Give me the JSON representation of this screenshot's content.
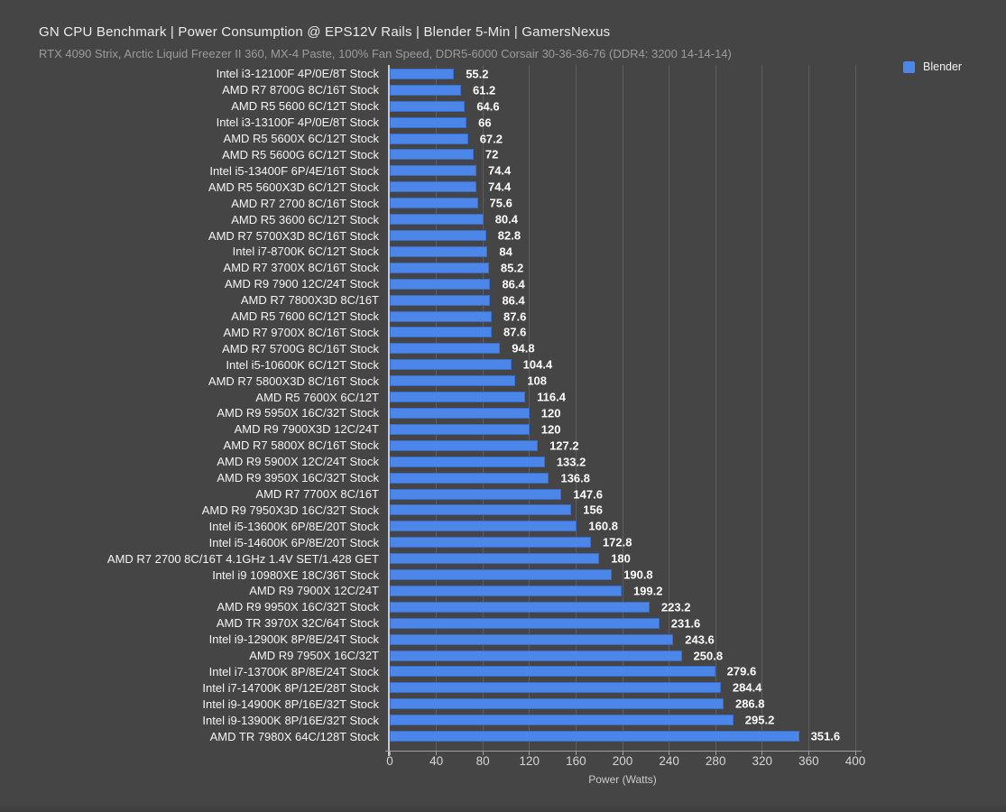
{
  "header": {
    "title": "GN CPU Benchmark | Power Consumption @ EPS12V Rails | Blender 5-Min | GamersNexus",
    "subtitle": "RTX 4090 Strix, Arctic Liquid Freezer II 360, MX-4 Paste, 100% Fan Speed, DDR5-6000 Corsair 30-36-36-76 (DDR4: 3200 14-14-14)"
  },
  "legend": {
    "label": "Blender",
    "color": "#4b86e8",
    "position": "top-right"
  },
  "colors": {
    "background": "#454545",
    "bar": "#4b86e8",
    "bar_border": "#3a6dc9",
    "gridline": "#5e5e5e",
    "zero_axis": "#c7c7c7",
    "title_text": "#ebebeb",
    "subtitle_text": "#9c9c9c",
    "label_text": "#f5f5f5",
    "value_text": "#ffffff"
  },
  "chart_data": {
    "type": "bar",
    "orientation": "horizontal",
    "title": "GN CPU Benchmark | Power Consumption @ EPS12V Rails | Blender 5-Min | GamersNexus",
    "subtitle": "RTX 4090 Strix, Arctic Liquid Freezer II 360, MX-4 Paste, 100% Fan Speed, DDR5-6000 Corsair 30-36-36-76 (DDR4: 3200 14-14-14)",
    "xlabel": "Power (Watts)",
    "ylabel": "",
    "xlim": [
      0,
      400
    ],
    "xticks": [
      0,
      40,
      80,
      120,
      160,
      200,
      240,
      280,
      320,
      360,
      400
    ],
    "grid": true,
    "legend_entries": [
      "Blender"
    ],
    "legend_position": "top-right",
    "series_name": "Blender",
    "categories": [
      "Intel i3-12100F 4P/0E/8T Stock",
      "AMD R7 8700G 8C/16T Stock",
      "AMD R5 5600 6C/12T Stock",
      "Intel i3-13100F 4P/0E/8T Stock",
      "AMD R5 5600X 6C/12T Stock",
      "AMD R5 5600G 6C/12T Stock",
      "Intel i5-13400F 6P/4E/16T Stock",
      "AMD R5 5600X3D 6C/12T Stock",
      "AMD R7 2700 8C/16T Stock",
      "AMD R5 3600 6C/12T Stock",
      "AMD R7 5700X3D 8C/16T Stock",
      "Intel i7-8700K 6C/12T Stock",
      "AMD R7 3700X 8C/16T Stock",
      "AMD R9 7900 12C/24T Stock",
      "AMD R7 7800X3D 8C/16T",
      "AMD R5 7600 6C/12T Stock",
      "AMD R7 9700X 8C/16T Stock",
      "AMD R7 5700G 8C/16T Stock",
      "Intel i5-10600K 6C/12T Stock",
      "AMD R7 5800X3D 8C/16T Stock",
      "AMD R5 7600X 6C/12T",
      "AMD R9 5950X 16C/32T Stock",
      "AMD R9 7900X3D 12C/24T",
      "AMD R7 5800X 8C/16T Stock",
      "AMD R9 5900X 12C/24T Stock",
      "AMD R9 3950X 16C/32T Stock",
      "AMD R7 7700X 8C/16T",
      "AMD R9 7950X3D 16C/32T Stock",
      "Intel i5-13600K 6P/8E/20T Stock",
      "Intel i5-14600K 6P/8E/20T Stock",
      "AMD R7 2700 8C/16T 4.1GHz 1.4V SET/1.428 GET",
      "Intel i9 10980XE 18C/36T Stock",
      "AMD R9 7900X 12C/24T",
      "AMD R9 9950X 16C/32T Stock",
      "AMD TR 3970X 32C/64T Stock",
      "Intel i9-12900K 8P/8E/24T Stock",
      "AMD R9 7950X 16C/32T",
      "Intel i7-13700K 8P/8E/24T Stock",
      "Intel i7-14700K 8P/12E/28T Stock",
      "Intel i9-14900K 8P/16E/32T Stock",
      "Intel i9-13900K 8P/16E/32T Stock",
      "AMD TR 7980X 64C/128T Stock"
    ],
    "values": [
      55.2,
      61.2,
      64.6,
      66,
      67.2,
      72,
      74.4,
      74.4,
      75.6,
      80.4,
      82.8,
      84,
      85.2,
      86.4,
      86.4,
      87.6,
      87.6,
      94.8,
      104.4,
      108,
      116.4,
      120,
      120,
      127.2,
      133.2,
      136.8,
      147.6,
      156,
      160.8,
      172.8,
      180,
      190.8,
      199.2,
      223.2,
      231.6,
      243.6,
      250.8,
      279.6,
      284.4,
      286.8,
      295.2,
      351.6
    ]
  }
}
